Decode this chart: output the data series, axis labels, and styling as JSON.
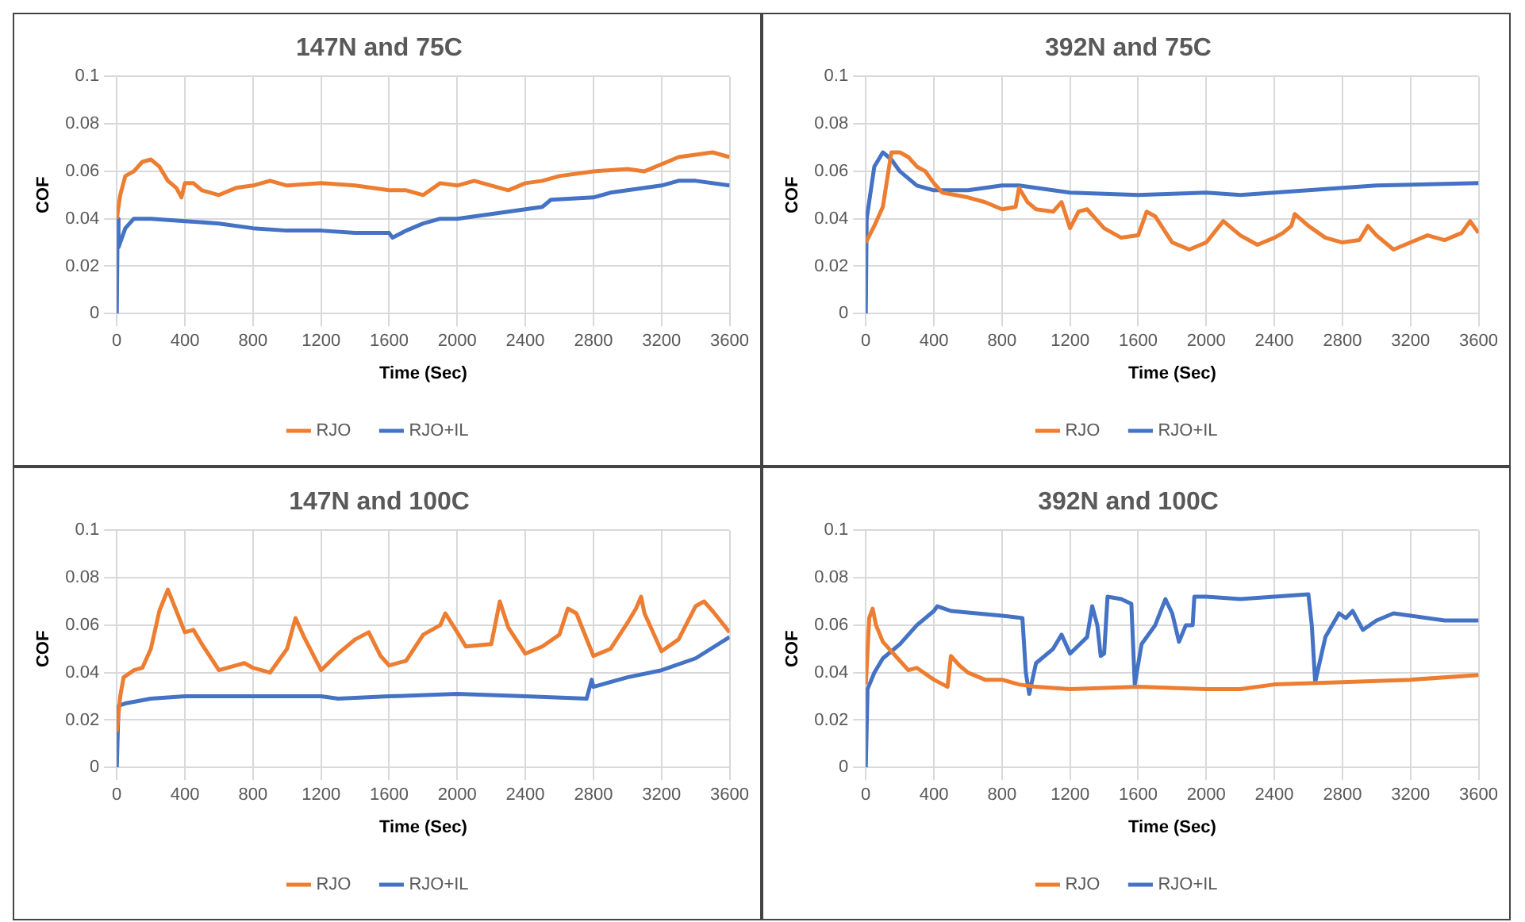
{
  "chart_data": [
    {
      "type": "line",
      "title": "147N and 75C",
      "xlabel": "Time (Sec)",
      "ylabel": "COF",
      "xlim": [
        0,
        3600
      ],
      "xticks": [
        0,
        400,
        800,
        1200,
        1600,
        2000,
        2400,
        2800,
        3200,
        3600
      ],
      "ylim": [
        0,
        0.1
      ],
      "yticks": [
        0,
        0.02,
        0.04,
        0.06,
        0.08,
        0.1
      ],
      "grid": true,
      "legend": "bottom",
      "marker": "none",
      "line_style": "solid",
      "series": [
        {
          "name": "RJO",
          "color": "#ed7d31",
          "x": [
            0,
            20,
            50,
            100,
            150,
            200,
            250,
            300,
            350,
            380,
            400,
            450,
            500,
            600,
            700,
            800,
            900,
            1000,
            1200,
            1400,
            1500,
            1600,
            1700,
            1800,
            1900,
            2000,
            2100,
            2200,
            2300,
            2400,
            2500,
            2600,
            2800,
            3000,
            3100,
            3200,
            3300,
            3400,
            3500,
            3600
          ],
          "values": [
            0.04,
            0.05,
            0.058,
            0.06,
            0.064,
            0.065,
            0.062,
            0.056,
            0.053,
            0.049,
            0.055,
            0.055,
            0.052,
            0.05,
            0.053,
            0.054,
            0.056,
            0.054,
            0.055,
            0.054,
            0.053,
            0.052,
            0.052,
            0.05,
            0.055,
            0.054,
            0.056,
            0.054,
            0.052,
            0.055,
            0.056,
            0.058,
            0.06,
            0.061,
            0.06,
            0.063,
            0.066,
            0.067,
            0.068,
            0.066
          ]
        },
        {
          "name": "RJO+IL",
          "color": "#4472c4",
          "x": [
            0,
            5,
            10,
            50,
            100,
            200,
            400,
            600,
            800,
            1000,
            1200,
            1400,
            1600,
            1620,
            1700,
            1800,
            1900,
            2000,
            2200,
            2400,
            2500,
            2550,
            2800,
            2900,
            3000,
            3200,
            3300,
            3400,
            3600
          ],
          "values": [
            0,
            0.04,
            0.028,
            0.036,
            0.04,
            0.04,
            0.039,
            0.038,
            0.036,
            0.035,
            0.035,
            0.034,
            0.034,
            0.032,
            0.035,
            0.038,
            0.04,
            0.04,
            0.042,
            0.044,
            0.045,
            0.048,
            0.049,
            0.051,
            0.052,
            0.054,
            0.056,
            0.056,
            0.054
          ]
        }
      ]
    },
    {
      "type": "line",
      "title": "392N and 75C",
      "xlabel": "Time (Sec)",
      "ylabel": "COF",
      "xlim": [
        0,
        3600
      ],
      "xticks": [
        0,
        400,
        800,
        1200,
        1600,
        2000,
        2400,
        2800,
        3200,
        3600
      ],
      "ylim": [
        0,
        0.1
      ],
      "yticks": [
        0,
        0.02,
        0.04,
        0.06,
        0.08,
        0.1
      ],
      "grid": true,
      "legend": "bottom",
      "marker": "none",
      "line_style": "solid",
      "series": [
        {
          "name": "RJO",
          "color": "#ed7d31",
          "x": [
            0,
            50,
            100,
            150,
            200,
            250,
            300,
            350,
            400,
            450,
            600,
            700,
            800,
            880,
            900,
            950,
            1000,
            1100,
            1150,
            1200,
            1250,
            1300,
            1400,
            1500,
            1600,
            1650,
            1700,
            1800,
            1900,
            2000,
            2100,
            2200,
            2300,
            2400,
            2450,
            2500,
            2520,
            2600,
            2700,
            2800,
            2900,
            2950,
            3000,
            3100,
            3200,
            3300,
            3400,
            3500,
            3550,
            3600
          ],
          "values": [
            0.03,
            0.037,
            0.045,
            0.068,
            0.068,
            0.066,
            0.062,
            0.06,
            0.055,
            0.051,
            0.049,
            0.047,
            0.044,
            0.045,
            0.053,
            0.047,
            0.044,
            0.043,
            0.047,
            0.036,
            0.043,
            0.044,
            0.036,
            0.032,
            0.033,
            0.043,
            0.041,
            0.03,
            0.027,
            0.03,
            0.039,
            0.033,
            0.029,
            0.032,
            0.034,
            0.037,
            0.042,
            0.037,
            0.032,
            0.03,
            0.031,
            0.037,
            0.033,
            0.027,
            0.03,
            0.033,
            0.031,
            0.034,
            0.039,
            0.034
          ]
        },
        {
          "name": "RJO+IL",
          "color": "#4472c4",
          "x": [
            0,
            5,
            50,
            100,
            150,
            200,
            250,
            300,
            400,
            600,
            800,
            900,
            1000,
            1200,
            1600,
            2000,
            2200,
            2400,
            2800,
            3000,
            3600
          ],
          "values": [
            0,
            0.04,
            0.062,
            0.068,
            0.065,
            0.06,
            0.057,
            0.054,
            0.052,
            0.052,
            0.054,
            0.054,
            0.053,
            0.051,
            0.05,
            0.051,
            0.05,
            0.051,
            0.053,
            0.054,
            0.055
          ]
        }
      ]
    },
    {
      "type": "line",
      "title": "147N and 100C",
      "xlabel": "Time (Sec)",
      "ylabel": "COF",
      "xlim": [
        0,
        3600
      ],
      "xticks": [
        0,
        400,
        800,
        1200,
        1600,
        2000,
        2400,
        2800,
        3200,
        3600
      ],
      "ylim": [
        0,
        0.1
      ],
      "yticks": [
        0,
        0.02,
        0.04,
        0.06,
        0.08,
        0.1
      ],
      "grid": true,
      "legend": "bottom",
      "marker": "none",
      "line_style": "solid",
      "series": [
        {
          "name": "RJO",
          "color": "#ed7d31",
          "x": [
            0,
            20,
            40,
            100,
            150,
            200,
            250,
            300,
            350,
            400,
            450,
            500,
            600,
            700,
            750,
            800,
            900,
            1000,
            1050,
            1100,
            1200,
            1300,
            1400,
            1480,
            1550,
            1600,
            1700,
            1800,
            1900,
            1930,
            2000,
            2050,
            2200,
            2250,
            2300,
            2400,
            2500,
            2600,
            2650,
            2700,
            2800,
            2900,
            3000,
            3050,
            3080,
            3100,
            3200,
            3300,
            3400,
            3450,
            3500,
            3600
          ],
          "values": [
            0.015,
            0.03,
            0.038,
            0.041,
            0.042,
            0.05,
            0.066,
            0.075,
            0.066,
            0.057,
            0.058,
            0.052,
            0.041,
            0.043,
            0.044,
            0.042,
            0.04,
            0.05,
            0.063,
            0.055,
            0.041,
            0.048,
            0.054,
            0.057,
            0.047,
            0.043,
            0.045,
            0.056,
            0.06,
            0.065,
            0.057,
            0.051,
            0.052,
            0.07,
            0.059,
            0.048,
            0.051,
            0.056,
            0.067,
            0.065,
            0.047,
            0.05,
            0.061,
            0.067,
            0.072,
            0.065,
            0.049,
            0.054,
            0.068,
            0.07,
            0.066,
            0.057
          ]
        },
        {
          "name": "RJO+IL",
          "color": "#4472c4",
          "x": [
            0,
            10,
            50,
            200,
            400,
            800,
            1200,
            1300,
            1600,
            2000,
            2400,
            2760,
            2790,
            2800,
            3000,
            3200,
            3400,
            3600
          ],
          "values": [
            0,
            0.026,
            0.027,
            0.029,
            0.03,
            0.03,
            0.03,
            0.029,
            0.03,
            0.031,
            0.03,
            0.029,
            0.037,
            0.034,
            0.038,
            0.041,
            0.046,
            0.055
          ]
        }
      ]
    },
    {
      "type": "line",
      "title": "392N and 100C",
      "xlabel": "Time (Sec)",
      "ylabel": "COF",
      "xlim": [
        0,
        3600
      ],
      "xticks": [
        0,
        400,
        800,
        1200,
        1600,
        2000,
        2400,
        2800,
        3200,
        3600
      ],
      "ylim": [
        0,
        0.1
      ],
      "yticks": [
        0,
        0.02,
        0.04,
        0.06,
        0.08,
        0.1
      ],
      "grid": true,
      "legend": "bottom",
      "marker": "none",
      "line_style": "solid",
      "series": [
        {
          "name": "RJO",
          "color": "#ed7d31",
          "x": [
            0,
            20,
            40,
            60,
            100,
            200,
            250,
            300,
            400,
            480,
            500,
            550,
            600,
            700,
            800,
            900,
            1000,
            1200,
            1600,
            2000,
            2200,
            2400,
            2800,
            3200,
            3600
          ],
          "values": [
            0.035,
            0.063,
            0.067,
            0.06,
            0.053,
            0.045,
            0.041,
            0.042,
            0.037,
            0.034,
            0.047,
            0.043,
            0.04,
            0.037,
            0.037,
            0.035,
            0.034,
            0.033,
            0.034,
            0.033,
            0.033,
            0.035,
            0.036,
            0.037,
            0.039
          ]
        },
        {
          "name": "RJO+IL",
          "color": "#4472c4",
          "x": [
            0,
            10,
            50,
            100,
            200,
            300,
            400,
            420,
            500,
            800,
            920,
            940,
            960,
            1000,
            1100,
            1150,
            1200,
            1300,
            1330,
            1360,
            1380,
            1400,
            1420,
            1500,
            1560,
            1580,
            1620,
            1700,
            1760,
            1800,
            1840,
            1880,
            1920,
            1930,
            2000,
            2200,
            2400,
            2600,
            2620,
            2640,
            2700,
            2780,
            2820,
            2860,
            2920,
            3000,
            3100,
            3200,
            3400,
            3600
          ],
          "values": [
            0,
            0.033,
            0.04,
            0.046,
            0.052,
            0.06,
            0.066,
            0.068,
            0.066,
            0.064,
            0.063,
            0.04,
            0.031,
            0.044,
            0.05,
            0.056,
            0.048,
            0.055,
            0.068,
            0.06,
            0.047,
            0.048,
            0.072,
            0.071,
            0.069,
            0.035,
            0.052,
            0.06,
            0.071,
            0.065,
            0.053,
            0.06,
            0.06,
            0.072,
            0.072,
            0.071,
            0.072,
            0.073,
            0.06,
            0.036,
            0.055,
            0.065,
            0.063,
            0.066,
            0.058,
            0.062,
            0.065,
            0.064,
            0.062,
            0.062
          ]
        }
      ]
    }
  ]
}
